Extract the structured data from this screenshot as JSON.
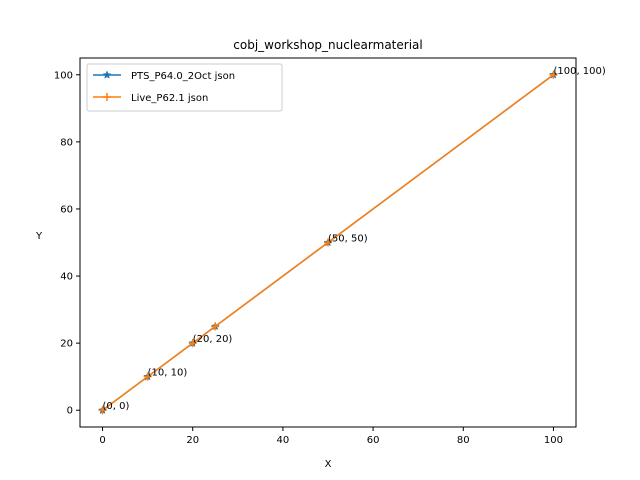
{
  "chart_data": {
    "type": "line",
    "title": "cobj_workshop_nuclearmaterial",
    "xlabel": "X",
    "ylabel": "Y",
    "xlim": [
      -5,
      105
    ],
    "ylim": [
      -5,
      105
    ],
    "xticks": [
      0,
      20,
      40,
      60,
      80,
      100
    ],
    "yticks": [
      0,
      20,
      40,
      60,
      80,
      100
    ],
    "grid": false,
    "legend_position": "top-left",
    "series": [
      {
        "name": "PTS_P64.0_2Oct json",
        "color": "#1f77b4",
        "marker": "star",
        "x": [
          0,
          10,
          20,
          25,
          50,
          100
        ],
        "y": [
          0,
          10,
          20,
          25,
          50,
          100
        ]
      },
      {
        "name": "Live_P62.1 json",
        "color": "#ff7f0e",
        "marker": "plus",
        "x": [
          0,
          10,
          20,
          25,
          50,
          100
        ],
        "y": [
          0,
          10,
          20,
          25,
          50,
          100
        ]
      }
    ],
    "annotations": [
      {
        "x": 0,
        "y": 0,
        "text": "(0, 0)"
      },
      {
        "x": 10,
        "y": 10,
        "text": "(10, 10)"
      },
      {
        "x": 20,
        "y": 20,
        "text": "(20, 20)"
      },
      {
        "x": 50,
        "y": 50,
        "text": "(50, 50)"
      },
      {
        "x": 100,
        "y": 100,
        "text": "(100, 100)"
      }
    ]
  }
}
